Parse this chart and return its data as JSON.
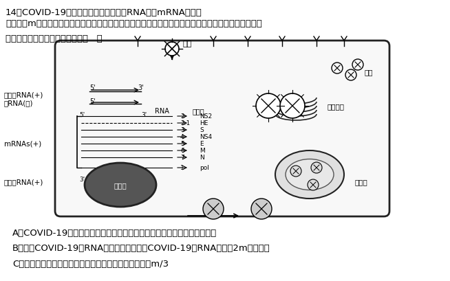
{
  "title_line1": "14．COVID-19病毒的基因组为单股正链RNA（与mRNA序列相",
  "title_line2": "同），含m个碱基。该病毒在感染的细胞胞质中复制、装配，以出芽方式释放，其增殖过程如下图所示。",
  "title_line3": "关于该病毒的叙述，不正确的是（   ）",
  "option_A": "A．COVID-19几乎只感染肺部细胞是因为侵入细胞必需要与特定的受体结合",
  "option_B": "B．一个COVID-19的RNA分子复制出一个新COVID-19的RNA约需要2m个核苷酸",
  "option_C": "C．该病毒基因所控制合成最长多肽链的氨基酸数不超过m/3",
  "bg_color": "#ffffff",
  "text_color": "#000000",
  "font_size_main": 9.5,
  "font_size_option": 9.5
}
